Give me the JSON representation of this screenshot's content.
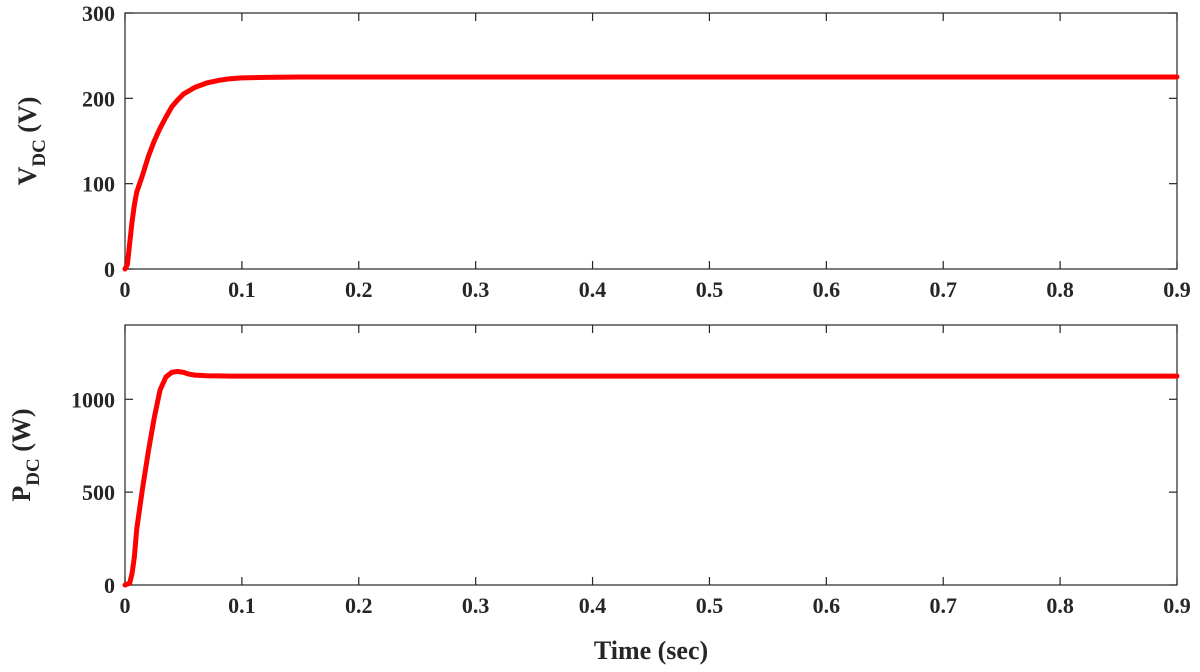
{
  "chart_data": [
    {
      "type": "line",
      "ylabel_main": "V",
      "ylabel_sub": "DC",
      "ylabel_rest": " (V)",
      "xlabel": "",
      "xlim": [
        0,
        0.9
      ],
      "ylim": [
        0,
        300
      ],
      "x_ticks": [
        "0",
        "0.1",
        "0.2",
        "0.3",
        "0.4",
        "0.5",
        "0.6",
        "0.7",
        "0.8",
        "0.9"
      ],
      "y_ticks": [
        "0",
        "100",
        "200",
        "300"
      ],
      "grid": false,
      "color": "#ff0000",
      "series": [
        {
          "x": [
            0,
            0.002,
            0.004,
            0.006,
            0.008,
            0.01,
            0.015,
            0.02,
            0.025,
            0.03,
            0.035,
            0.04,
            0.045,
            0.05,
            0.06,
            0.07,
            0.08,
            0.09,
            0.1,
            0.12,
            0.15,
            0.2,
            0.3,
            0.5,
            0.7,
            0.9
          ],
          "y": [
            0,
            5,
            30,
            55,
            75,
            90,
            110,
            132,
            150,
            165,
            178,
            190,
            198,
            205,
            213,
            218,
            221,
            223,
            224,
            224.5,
            225,
            225,
            225,
            225,
            225,
            225
          ]
        }
      ]
    },
    {
      "type": "line",
      "ylabel_main": "P",
      "ylabel_sub": "DC",
      "ylabel_rest": " (W)",
      "xlabel": "Time (sec)",
      "xlim": [
        0,
        0.9
      ],
      "ylim": [
        0,
        1400
      ],
      "x_ticks": [
        "0",
        "0.1",
        "0.2",
        "0.3",
        "0.4",
        "0.5",
        "0.6",
        "0.7",
        "0.8",
        "0.9"
      ],
      "y_ticks": [
        "0",
        "500",
        "1000"
      ],
      "grid": false,
      "color": "#ff0000",
      "series": [
        {
          "x": [
            0,
            0.004,
            0.006,
            0.008,
            0.01,
            0.015,
            0.02,
            0.025,
            0.03,
            0.035,
            0.04,
            0.045,
            0.05,
            0.055,
            0.06,
            0.07,
            0.08,
            0.09,
            0.1,
            0.15,
            0.3,
            0.5,
            0.7,
            0.9
          ],
          "y": [
            0,
            10,
            60,
            150,
            300,
            520,
            720,
            900,
            1050,
            1120,
            1145,
            1150,
            1145,
            1135,
            1130,
            1127,
            1126,
            1125,
            1125,
            1125,
            1125,
            1125,
            1125,
            1125
          ]
        }
      ]
    }
  ]
}
